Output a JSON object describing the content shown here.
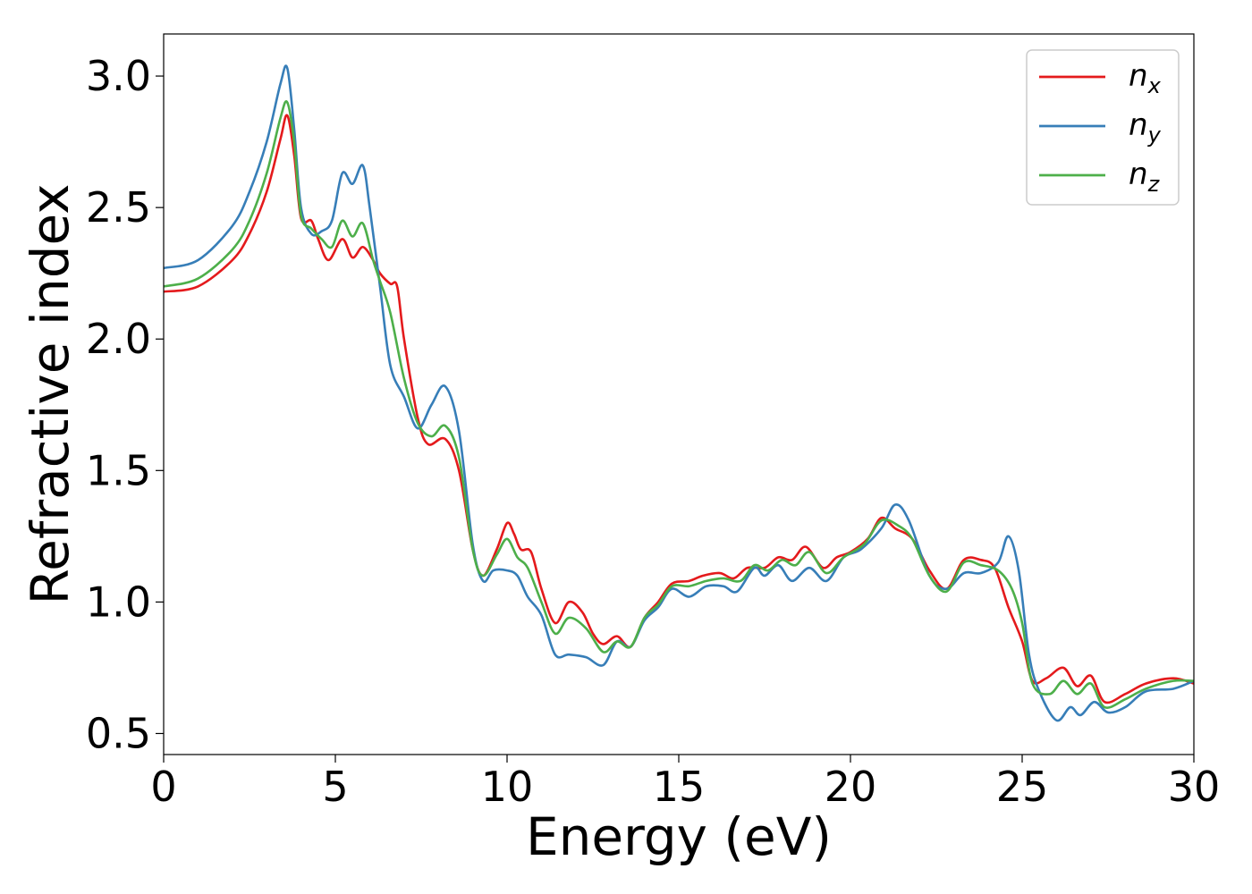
{
  "chart_data": {
    "type": "line",
    "title": "",
    "xlabel": "Energy (eV)",
    "ylabel": "Refractive index",
    "xlim": [
      0,
      30
    ],
    "ylim": [
      0.42,
      3.16
    ],
    "xticks": [
      0,
      5,
      10,
      15,
      20,
      25,
      30
    ],
    "xtick_labels": [
      "0",
      "5",
      "10",
      "15",
      "20",
      "25",
      "30"
    ],
    "yticks": [
      0.5,
      1.0,
      1.5,
      2.0,
      2.5,
      3.0
    ],
    "ytick_labels": [
      "0.5",
      "1.0",
      "1.5",
      "2.0",
      "2.5",
      "3.0"
    ],
    "grid": false,
    "legend_position": "top-right",
    "series": [
      {
        "name": "n_x",
        "legend_base": "n",
        "legend_sub": "x",
        "color": "#e41a1c",
        "points": [
          [
            0,
            2.18
          ],
          [
            1,
            2.2
          ],
          [
            2,
            2.3
          ],
          [
            2.5,
            2.4
          ],
          [
            3,
            2.56
          ],
          [
            3.4,
            2.76
          ],
          [
            3.6,
            2.85
          ],
          [
            3.8,
            2.7
          ],
          [
            4,
            2.46
          ],
          [
            4.3,
            2.45
          ],
          [
            4.5,
            2.38
          ],
          [
            4.8,
            2.3
          ],
          [
            5.2,
            2.38
          ],
          [
            5.5,
            2.31
          ],
          [
            5.8,
            2.35
          ],
          [
            6.1,
            2.3
          ],
          [
            6.3,
            2.25
          ],
          [
            6.6,
            2.21
          ],
          [
            6.8,
            2.2
          ],
          [
            7,
            2.0
          ],
          [
            7.4,
            1.7
          ],
          [
            7.7,
            1.6
          ],
          [
            8.2,
            1.62
          ],
          [
            8.6,
            1.5
          ],
          [
            9,
            1.2
          ],
          [
            9.3,
            1.1
          ],
          [
            9.7,
            1.2
          ],
          [
            10,
            1.3
          ],
          [
            10.2,
            1.26
          ],
          [
            10.4,
            1.2
          ],
          [
            10.7,
            1.19
          ],
          [
            11,
            1.05
          ],
          [
            11.4,
            0.92
          ],
          [
            11.8,
            1.0
          ],
          [
            12.2,
            0.96
          ],
          [
            12.5,
            0.88
          ],
          [
            12.8,
            0.84
          ],
          [
            13.2,
            0.87
          ],
          [
            13.6,
            0.83
          ],
          [
            14,
            0.94
          ],
          [
            14.4,
            1.0
          ],
          [
            14.8,
            1.07
          ],
          [
            15.3,
            1.08
          ],
          [
            15.7,
            1.1
          ],
          [
            16.2,
            1.11
          ],
          [
            16.6,
            1.09
          ],
          [
            17,
            1.13
          ],
          [
            17.5,
            1.13
          ],
          [
            17.9,
            1.17
          ],
          [
            18.3,
            1.16
          ],
          [
            18.7,
            1.21
          ],
          [
            19.2,
            1.13
          ],
          [
            19.6,
            1.17
          ],
          [
            20,
            1.19
          ],
          [
            20.5,
            1.24
          ],
          [
            20.9,
            1.32
          ],
          [
            21.3,
            1.28
          ],
          [
            21.8,
            1.24
          ],
          [
            22.3,
            1.12
          ],
          [
            22.8,
            1.05
          ],
          [
            23.3,
            1.16
          ],
          [
            23.8,
            1.16
          ],
          [
            24.2,
            1.13
          ],
          [
            24.6,
            0.98
          ],
          [
            25,
            0.85
          ],
          [
            25.3,
            0.7
          ],
          [
            25.7,
            0.71
          ],
          [
            26.2,
            0.75
          ],
          [
            26.6,
            0.68
          ],
          [
            27,
            0.72
          ],
          [
            27.4,
            0.62
          ],
          [
            28,
            0.65
          ],
          [
            28.6,
            0.69
          ],
          [
            29.4,
            0.71
          ],
          [
            30,
            0.69
          ]
        ]
      },
      {
        "name": "n_y",
        "legend_base": "n",
        "legend_sub": "y",
        "color": "#377eb8",
        "points": [
          [
            0,
            2.27
          ],
          [
            1,
            2.3
          ],
          [
            2,
            2.43
          ],
          [
            2.5,
            2.56
          ],
          [
            3,
            2.75
          ],
          [
            3.4,
            2.97
          ],
          [
            3.6,
            3.03
          ],
          [
            3.8,
            2.8
          ],
          [
            4,
            2.5
          ],
          [
            4.3,
            2.4
          ],
          [
            4.6,
            2.41
          ],
          [
            4.9,
            2.45
          ],
          [
            5.2,
            2.63
          ],
          [
            5.5,
            2.59
          ],
          [
            5.8,
            2.66
          ],
          [
            6,
            2.5
          ],
          [
            6.3,
            2.2
          ],
          [
            6.6,
            1.9
          ],
          [
            7,
            1.78
          ],
          [
            7.4,
            1.66
          ],
          [
            7.8,
            1.75
          ],
          [
            8.2,
            1.82
          ],
          [
            8.6,
            1.65
          ],
          [
            9,
            1.22
          ],
          [
            9.3,
            1.08
          ],
          [
            9.6,
            1.12
          ],
          [
            10,
            1.12
          ],
          [
            10.3,
            1.1
          ],
          [
            10.6,
            1.02
          ],
          [
            11,
            0.95
          ],
          [
            11.4,
            0.8
          ],
          [
            11.8,
            0.8
          ],
          [
            12.3,
            0.79
          ],
          [
            12.8,
            0.76
          ],
          [
            13.2,
            0.85
          ],
          [
            13.6,
            0.83
          ],
          [
            14,
            0.93
          ],
          [
            14.4,
            0.98
          ],
          [
            14.8,
            1.05
          ],
          [
            15.3,
            1.02
          ],
          [
            15.8,
            1.06
          ],
          [
            16.3,
            1.06
          ],
          [
            16.7,
            1.04
          ],
          [
            17.2,
            1.13
          ],
          [
            17.5,
            1.1
          ],
          [
            17.9,
            1.14
          ],
          [
            18.3,
            1.08
          ],
          [
            18.8,
            1.13
          ],
          [
            19.3,
            1.08
          ],
          [
            19.8,
            1.17
          ],
          [
            20.3,
            1.2
          ],
          [
            20.9,
            1.28
          ],
          [
            21.3,
            1.37
          ],
          [
            21.7,
            1.31
          ],
          [
            22.3,
            1.1
          ],
          [
            22.8,
            1.05
          ],
          [
            23.3,
            1.11
          ],
          [
            23.8,
            1.11
          ],
          [
            24.3,
            1.15
          ],
          [
            24.6,
            1.25
          ],
          [
            24.9,
            1.12
          ],
          [
            25.2,
            0.8
          ],
          [
            25.5,
            0.66
          ],
          [
            26,
            0.55
          ],
          [
            26.4,
            0.6
          ],
          [
            26.7,
            0.57
          ],
          [
            27.1,
            0.62
          ],
          [
            27.5,
            0.58
          ],
          [
            28,
            0.6
          ],
          [
            28.6,
            0.66
          ],
          [
            29.4,
            0.67
          ],
          [
            30,
            0.7
          ]
        ]
      },
      {
        "name": "n_z",
        "legend_base": "n",
        "legend_sub": "z",
        "color": "#4daf4a",
        "points": [
          [
            0,
            2.2
          ],
          [
            1,
            2.23
          ],
          [
            2,
            2.34
          ],
          [
            2.5,
            2.45
          ],
          [
            3,
            2.63
          ],
          [
            3.4,
            2.84
          ],
          [
            3.6,
            2.9
          ],
          [
            3.8,
            2.75
          ],
          [
            4,
            2.47
          ],
          [
            4.3,
            2.42
          ],
          [
            4.6,
            2.38
          ],
          [
            4.9,
            2.35
          ],
          [
            5.2,
            2.45
          ],
          [
            5.5,
            2.39
          ],
          [
            5.8,
            2.44
          ],
          [
            6.1,
            2.3
          ],
          [
            6.3,
            2.22
          ],
          [
            6.6,
            2.1
          ],
          [
            7,
            1.85
          ],
          [
            7.4,
            1.68
          ],
          [
            7.8,
            1.63
          ],
          [
            8.2,
            1.67
          ],
          [
            8.6,
            1.55
          ],
          [
            9,
            1.2
          ],
          [
            9.3,
            1.1
          ],
          [
            9.7,
            1.18
          ],
          [
            10,
            1.24
          ],
          [
            10.3,
            1.17
          ],
          [
            10.6,
            1.13
          ],
          [
            11,
            1.0
          ],
          [
            11.4,
            0.88
          ],
          [
            11.8,
            0.94
          ],
          [
            12.3,
            0.9
          ],
          [
            12.8,
            0.81
          ],
          [
            13.2,
            0.85
          ],
          [
            13.6,
            0.83
          ],
          [
            14,
            0.94
          ],
          [
            14.4,
            0.99
          ],
          [
            14.8,
            1.06
          ],
          [
            15.3,
            1.06
          ],
          [
            15.8,
            1.08
          ],
          [
            16.3,
            1.09
          ],
          [
            16.8,
            1.08
          ],
          [
            17.2,
            1.14
          ],
          [
            17.6,
            1.12
          ],
          [
            18,
            1.16
          ],
          [
            18.4,
            1.14
          ],
          [
            18.8,
            1.19
          ],
          [
            19.3,
            1.11
          ],
          [
            19.8,
            1.17
          ],
          [
            20.4,
            1.22
          ],
          [
            20.9,
            1.31
          ],
          [
            21.4,
            1.29
          ],
          [
            21.8,
            1.24
          ],
          [
            22.3,
            1.1
          ],
          [
            22.8,
            1.04
          ],
          [
            23.3,
            1.15
          ],
          [
            23.8,
            1.14
          ],
          [
            24.3,
            1.12
          ],
          [
            24.7,
            1.05
          ],
          [
            25,
            0.92
          ],
          [
            25.3,
            0.69
          ],
          [
            25.8,
            0.65
          ],
          [
            26.2,
            0.7
          ],
          [
            26.6,
            0.65
          ],
          [
            27,
            0.69
          ],
          [
            27.4,
            0.6
          ],
          [
            28,
            0.63
          ],
          [
            28.6,
            0.67
          ],
          [
            29.4,
            0.7
          ],
          [
            30,
            0.7
          ]
        ]
      }
    ]
  }
}
